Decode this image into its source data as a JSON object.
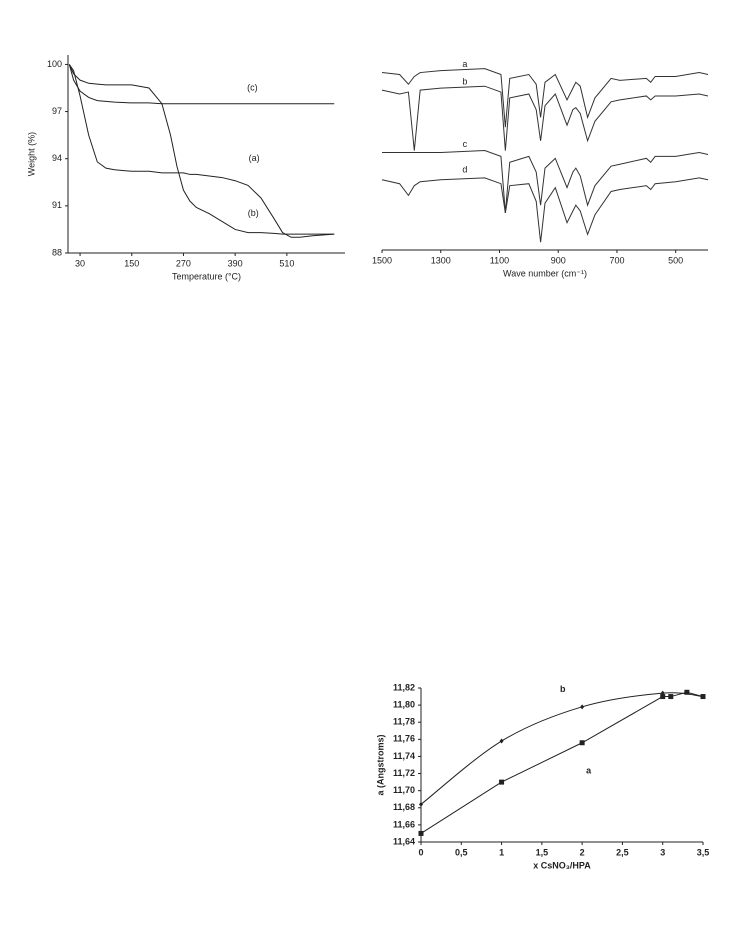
{
  "chart_data": [
    {
      "type": "line",
      "xlabel": "Temperature (°C)",
      "ylabel": "Weight (%)",
      "xlim": [
        2,
        645
      ],
      "ylim": [
        88,
        100.6
      ],
      "xticks": [
        30,
        150,
        270,
        390,
        510
      ],
      "yticks": [
        88,
        91,
        94,
        97,
        100
      ],
      "axis_lines": [
        "left",
        "bottom"
      ],
      "color": "#222",
      "x": [
        5,
        15,
        30,
        50,
        70,
        90,
        110,
        150,
        190,
        220,
        240,
        255,
        270,
        285,
        300,
        330,
        360,
        390,
        420,
        450,
        480,
        500,
        520,
        540,
        570,
        620
      ],
      "series": [
        {
          "name": "(a)",
          "values": [
            100,
            99.6,
            98,
            95.5,
            93.8,
            93.4,
            93.3,
            93.2,
            93.2,
            93.1,
            93.1,
            93.1,
            93.1,
            93.0,
            93.0,
            92.9,
            92.8,
            92.6,
            92.3,
            91.5,
            90.2,
            89.3,
            89.0,
            89.0,
            89.1,
            89.2
          ]
        },
        {
          "name": "(b)",
          "values": [
            100,
            99.4,
            99.0,
            98.8,
            98.75,
            98.7,
            98.7,
            98.7,
            98.5,
            97.5,
            95.5,
            93.5,
            92.0,
            91.3,
            90.9,
            90.5,
            90.0,
            89.5,
            89.3,
            89.3,
            89.25,
            89.2,
            89.2,
            89.2,
            89.2,
            89.2
          ]
        },
        {
          "name": "(c)",
          "values": [
            100,
            99.0,
            98.3,
            97.9,
            97.7,
            97.65,
            97.6,
            97.55,
            97.55,
            97.5,
            97.5,
            97.5,
            97.5,
            97.5,
            97.5,
            97.5,
            97.5,
            97.5,
            97.5,
            97.5,
            97.5,
            97.5,
            97.5,
            97.5,
            97.5,
            97.5
          ]
        }
      ],
      "annotations": [
        {
          "text": "(a)",
          "x": 434,
          "y": 94
        },
        {
          "text": "(b)",
          "x": 432,
          "y": 90.5
        },
        {
          "text": "(c)",
          "x": 430,
          "y": 98.5
        }
      ]
    },
    {
      "type": "line",
      "xlabel": "Wave number (cm⁻¹)",
      "xlim": [
        1500,
        390
      ],
      "ylim": [
        0,
        100
      ],
      "xticks": [
        1500,
        1300,
        1100,
        900,
        700,
        500
      ],
      "axis_lines": [
        "bottom"
      ],
      "color": "#333",
      "x": [
        1500,
        1440,
        1410,
        1390,
        1370,
        1300,
        1150,
        1095,
        1080,
        1065,
        1000,
        975,
        960,
        945,
        910,
        870,
        850,
        840,
        825,
        800,
        775,
        720,
        690,
        600,
        585,
        570,
        500,
        420,
        390
      ],
      "series": [
        {
          "name": "a",
          "values": [
            91,
            90,
            85,
            89,
            91,
            92,
            93,
            90,
            63,
            88,
            90,
            85,
            68,
            86,
            90,
            77,
            83,
            86,
            84,
            68,
            78,
            88,
            87,
            88,
            86,
            89,
            89,
            91,
            90
          ]
        },
        {
          "name": "b",
          "values": [
            82,
            80,
            81,
            51,
            82,
            83,
            84,
            81,
            51,
            78,
            80,
            72,
            56,
            74,
            80,
            64,
            72,
            73,
            70,
            56,
            66,
            76,
            77,
            79,
            77,
            79,
            79,
            80,
            79
          ]
        },
        {
          "name": "c",
          "values": [
            50,
            50,
            50,
            50,
            50,
            50,
            51,
            48,
            19,
            45,
            48,
            40,
            23,
            42,
            47,
            32,
            40,
            42,
            38,
            23,
            33,
            43,
            44,
            47,
            45,
            48,
            48,
            50,
            49
          ]
        },
        {
          "name": "d",
          "values": [
            36,
            34,
            28,
            33,
            35,
            36,
            37,
            34,
            19,
            33,
            34,
            25,
            4,
            24,
            32,
            14,
            20,
            23,
            20,
            8,
            18,
            30,
            31,
            33,
            31,
            34,
            35,
            37,
            36
          ]
        }
      ],
      "annotations": [
        {
          "text": "a",
          "x": 1218,
          "y": 95
        },
        {
          "text": "b",
          "x": 1218,
          "y": 86
        },
        {
          "text": "c",
          "x": 1218,
          "y": 54
        },
        {
          "text": "d",
          "x": 1218,
          "y": 41
        }
      ]
    },
    {
      "type": "scatter",
      "xlabel": "x CsNO₃/HPA",
      "ylabel": "a (Angstroms)",
      "xlim": [
        0,
        3.5
      ],
      "ylim": [
        11.64,
        11.82
      ],
      "xticks": [
        0,
        {
          "value": 0.5,
          "label": "0,5"
        },
        1,
        {
          "value": 1.5,
          "label": "1,5"
        },
        2,
        {
          "value": 2.5,
          "label": "2,5"
        },
        3,
        {
          "value": 3.5,
          "label": "3,5"
        }
      ],
      "yticks": [
        {
          "value": 11.64,
          "label": "11,64"
        },
        {
          "value": 11.66,
          "label": "11,66"
        },
        {
          "value": 11.68,
          "label": "11,68"
        },
        {
          "value": 11.7,
          "label": "11,70"
        },
        {
          "value": 11.72,
          "label": "11,72"
        },
        {
          "value": 11.74,
          "label": "11,74"
        },
        {
          "value": 11.76,
          "label": "11,76"
        },
        {
          "value": 11.78,
          "label": "11,78"
        },
        {
          "value": 11.8,
          "label": "11,80"
        },
        {
          "value": 11.82,
          "label": "11,82"
        }
      ],
      "axis_lines": [
        "left",
        "bottom"
      ],
      "color": "#222",
      "series": [
        {
          "name": "a",
          "marker": "square",
          "curve": "straight",
          "x": [
            0,
            1,
            2,
            3,
            3.1,
            3.3,
            3.5
          ],
          "values": [
            11.65,
            11.71,
            11.756,
            11.81,
            11.81,
            11.815,
            11.81
          ]
        },
        {
          "name": "b",
          "marker": "diamond",
          "curve": "smooth",
          "x": [
            0,
            1,
            2,
            3,
            3.5
          ],
          "values": [
            11.684,
            11.758,
            11.798,
            11.814,
            11.81
          ]
        }
      ],
      "annotations": [
        {
          "text": "a",
          "x": 2.08,
          "y": 11.723
        },
        {
          "text": "b",
          "x": 1.76,
          "y": 11.818
        }
      ]
    }
  ]
}
